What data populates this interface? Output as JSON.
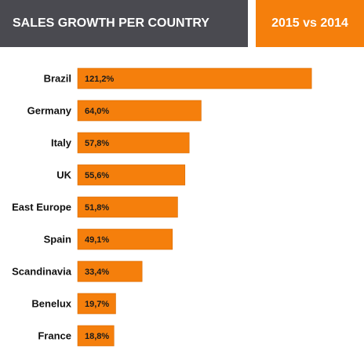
{
  "header": {
    "title": "SALES GROWTH PER COUNTRY",
    "badge": "2015 vs 2014"
  },
  "colors": {
    "bar": "#f57f0c",
    "bar_stroke": "#d86a00",
    "title_bg": "#4a4a50",
    "badge_bg": "#f57f0c"
  },
  "chart_data": {
    "type": "bar",
    "orientation": "horizontal",
    "categories": [
      "Brazil",
      "Germany",
      "Italy",
      "UK",
      "East Europe",
      "Spain",
      "Scandinavia",
      "Benelux",
      "France"
    ],
    "values": [
      121.2,
      64.0,
      57.8,
      55.6,
      51.8,
      49.1,
      33.4,
      19.7,
      18.8
    ],
    "value_labels": [
      "121,2%",
      "64,0%",
      "57,8%",
      "55,6%",
      "51,8%",
      "49,1%",
      "33,4%",
      "19,7%",
      "18,8%"
    ],
    "title": "SALES GROWTH PER COUNTRY",
    "xlabel": "",
    "ylabel": "",
    "xlim": [
      0,
      130
    ],
    "grid": false,
    "legend": "none"
  }
}
